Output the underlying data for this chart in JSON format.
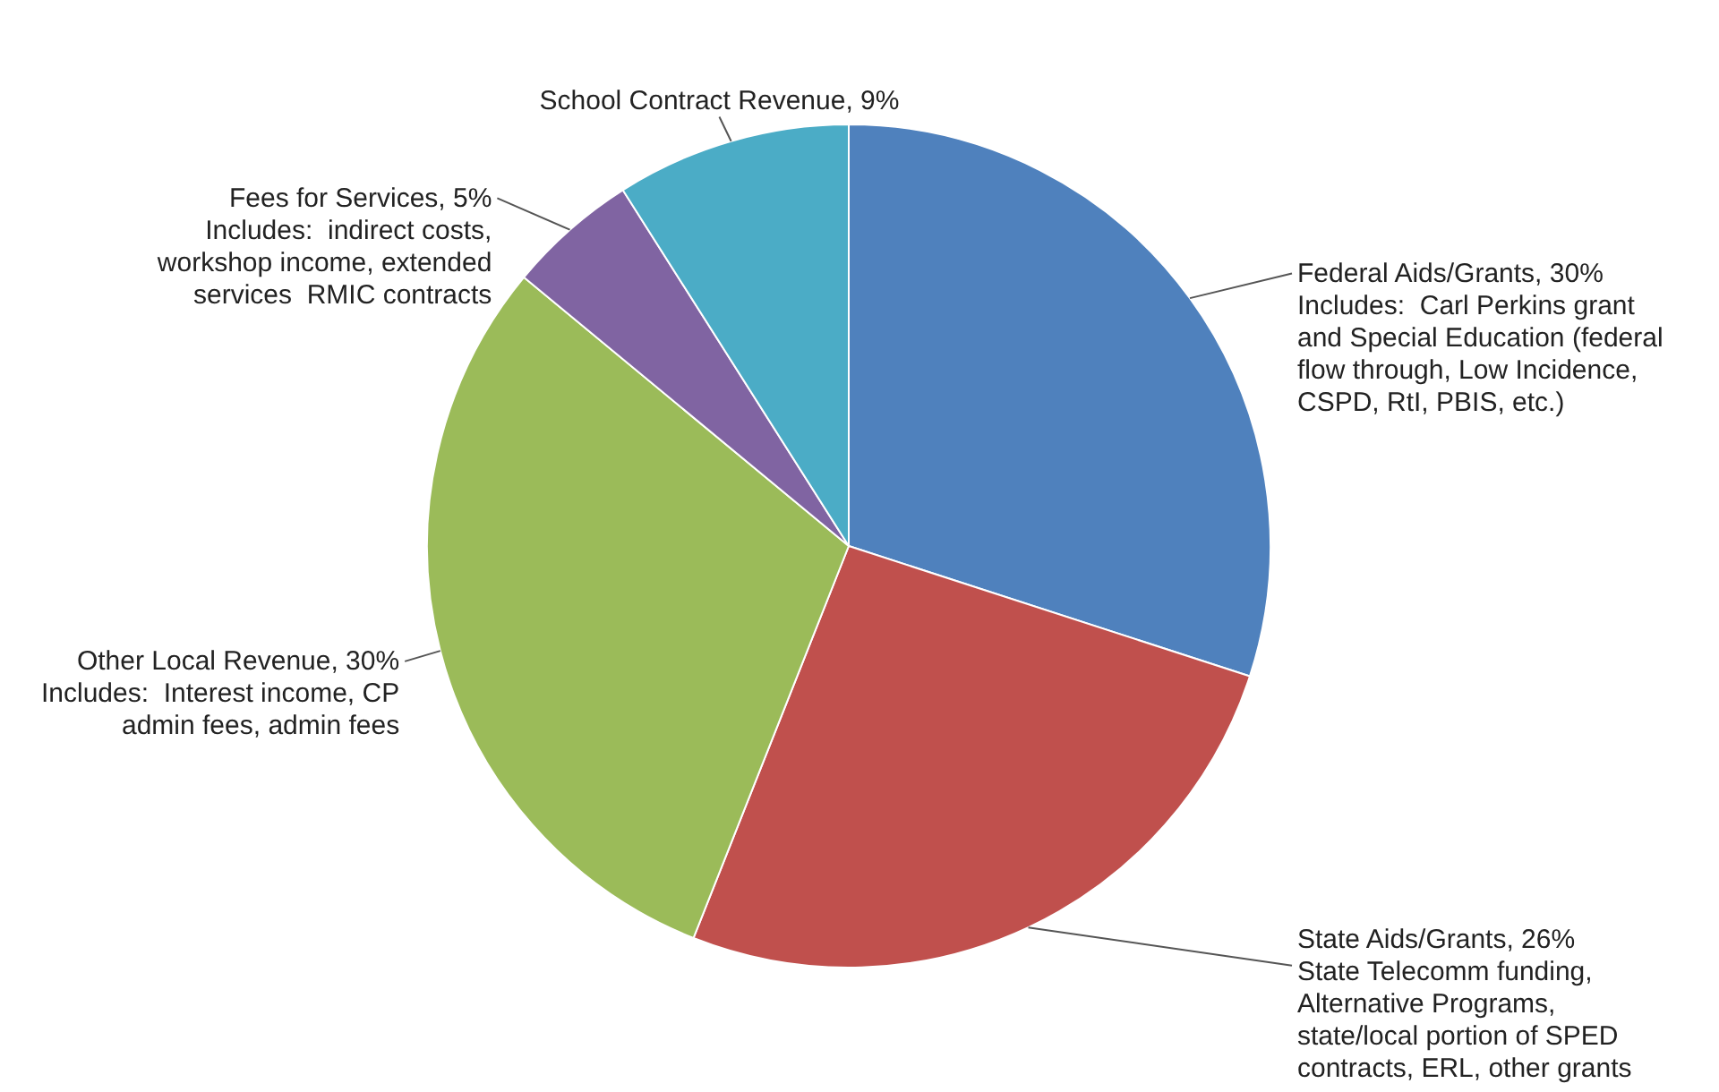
{
  "chart_data": {
    "type": "pie",
    "categories": [
      "Federal Aids/Grants",
      "State Aids/Grants",
      "Other Local Revenue",
      "Fees for Services",
      "School Contract Revenue"
    ],
    "values": [
      30,
      26,
      30,
      5,
      9
    ],
    "value_labels": [
      "30%",
      "26%",
      "30%",
      "5%",
      "9%"
    ],
    "colors": [
      "#4f81bd",
      "#c0504d",
      "#9bbb59",
      "#8064a2",
      "#4bacc6"
    ],
    "annotations": [
      {
        "text": "Includes:  Carl Perkins grant and Special Education (federal flow through, Low Incidence, CSPD, RtI, PBIS, etc.)",
        "x": "Federal Aids/Grants"
      },
      {
        "text": "State Telecomm funding, Alternative Programs, state/local portion of SPED contracts, ERL, other grants",
        "x": "State Aids/Grants"
      },
      {
        "text": "Includes:  Interest income, CP admin fees, admin fees",
        "x": "Other Local Revenue"
      },
      {
        "text": "Includes:  indirect costs, workshop income, extended services  RMIC contracts",
        "x": "Fees for Services"
      }
    ],
    "legend": false
  }
}
